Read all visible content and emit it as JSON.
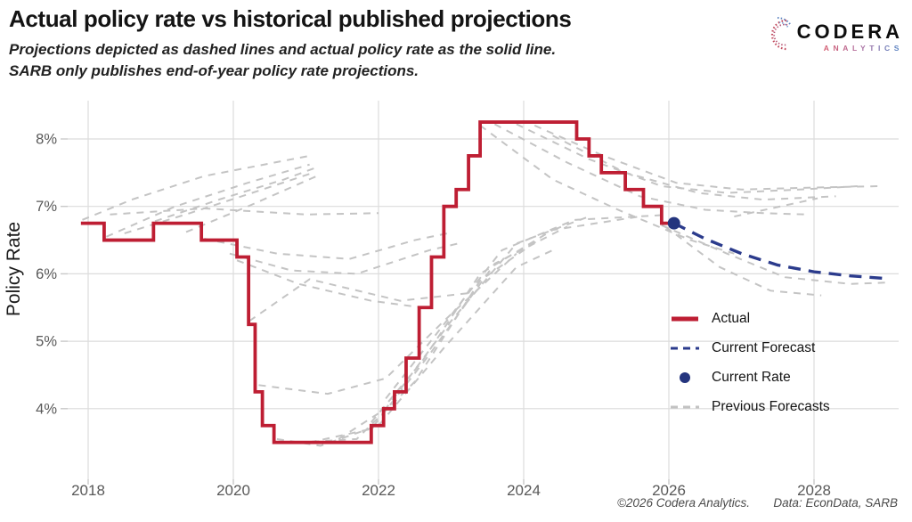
{
  "header": {
    "title": "Actual policy rate vs historical published projections",
    "subtitle_line1": "Projections depicted as dashed lines and actual policy rate as the solid line.",
    "subtitle_line2": "SARB only publishes end-of-year policy rate projections."
  },
  "logo": {
    "brand": "CODERA",
    "sub": "ANALYTICS"
  },
  "legend": {
    "items": [
      {
        "label": "Actual",
        "type": "solid",
        "color": "#BE1E33"
      },
      {
        "label": "Current Forecast",
        "type": "dashed",
        "color": "#2B3B8C"
      },
      {
        "label": "Current Rate",
        "type": "dot",
        "color": "#24357E"
      },
      {
        "label": "Previous Forecasts",
        "type": "dashed",
        "color": "#C2C2C2"
      }
    ]
  },
  "footer": {
    "copyright": "©2026 Codera Analytics.",
    "source": "Data: EconData, SARB"
  },
  "chart_data": {
    "type": "line",
    "title": "Actual policy rate vs historical published projections",
    "xlabel": "",
    "ylabel": "Policy Rate",
    "xlim": [
      2017.7,
      2029.2
    ],
    "ylim": [
      2.95,
      8.6
    ],
    "grid": true,
    "legend_position": "right-middle",
    "x_ticks": [
      2018,
      2020,
      2022,
      2024,
      2026,
      2028
    ],
    "x_tick_labels": [
      "2018",
      "2020",
      "2022",
      "2024",
      "2026",
      "2028"
    ],
    "y_ticks": [
      4,
      5,
      6,
      7,
      8
    ],
    "y_tick_labels": [
      "4%",
      "5%",
      "6%",
      "7%",
      "8%"
    ],
    "colors": {
      "actual": "#BE1E33",
      "current_forecast": "#2B3B8C",
      "current_rate": "#24357E",
      "previous_forecasts": "#C4C4C4",
      "gridline": "#DCDCDC",
      "tick_text": "#595959"
    },
    "series": {
      "actual": {
        "name": "Actual",
        "style": "step",
        "points": [
          [
            2017.9,
            6.75
          ],
          [
            2018.22,
            6.5
          ],
          [
            2018.9,
            6.75
          ],
          [
            2019.56,
            6.5
          ],
          [
            2020.05,
            6.25
          ],
          [
            2020.21,
            5.25
          ],
          [
            2020.3,
            4.25
          ],
          [
            2020.4,
            3.75
          ],
          [
            2020.56,
            3.5
          ],
          [
            2021.9,
            3.75
          ],
          [
            2022.07,
            4.0
          ],
          [
            2022.22,
            4.25
          ],
          [
            2022.38,
            4.75
          ],
          [
            2022.56,
            5.5
          ],
          [
            2022.73,
            6.25
          ],
          [
            2022.9,
            7.0
          ],
          [
            2023.07,
            7.25
          ],
          [
            2023.24,
            7.75
          ],
          [
            2023.4,
            8.25
          ],
          [
            2024.73,
            8.0
          ],
          [
            2024.9,
            7.75
          ],
          [
            2025.07,
            7.5
          ],
          [
            2025.4,
            7.25
          ],
          [
            2025.65,
            7.0
          ],
          [
            2025.9,
            6.75
          ]
        ],
        "end_year": 2026.07
      },
      "current_forecast": {
        "name": "Current Forecast",
        "style": "dashed",
        "points": [
          [
            2026.07,
            6.75
          ],
          [
            2026.5,
            6.52
          ],
          [
            2027.0,
            6.3
          ],
          [
            2027.5,
            6.13
          ],
          [
            2028.0,
            6.03
          ],
          [
            2028.5,
            5.97
          ],
          [
            2029.0,
            5.93
          ]
        ]
      },
      "current_rate": {
        "name": "Current Rate",
        "x": 2026.07,
        "y": 6.75
      },
      "previous_forecasts": [
        [
          [
            2017.92,
            6.8
          ],
          [
            2018.6,
            7.1
          ],
          [
            2019.6,
            7.45
          ],
          [
            2021.05,
            7.75
          ]
        ],
        [
          [
            2018.25,
            6.55
          ],
          [
            2019.2,
            7.0
          ],
          [
            2020.2,
            7.35
          ],
          [
            2021.05,
            7.62
          ]
        ],
        [
          [
            2018.5,
            6.6
          ],
          [
            2019.4,
            6.9
          ],
          [
            2020.4,
            7.25
          ],
          [
            2021.1,
            7.5
          ]
        ],
        [
          [
            2018.92,
            6.78
          ],
          [
            2019.8,
            7.1
          ],
          [
            2020.7,
            7.4
          ],
          [
            2021.15,
            7.58
          ]
        ],
        [
          [
            2019.35,
            6.62
          ],
          [
            2020.2,
            7.0
          ],
          [
            2021.15,
            7.45
          ]
        ],
        [
          [
            2018.3,
            6.88
          ],
          [
            2019.6,
            6.97
          ],
          [
            2021.0,
            6.88
          ],
          [
            2022.0,
            6.9
          ]
        ],
        [
          [
            2019.6,
            6.52
          ],
          [
            2020.6,
            6.3
          ],
          [
            2021.6,
            6.22
          ],
          [
            2022.5,
            6.5
          ],
          [
            2022.95,
            6.6
          ]
        ],
        [
          [
            2019.95,
            6.3
          ],
          [
            2020.8,
            6.05
          ],
          [
            2021.7,
            6.0
          ],
          [
            2022.7,
            6.35
          ],
          [
            2023.1,
            6.45
          ]
        ],
        [
          [
            2020.05,
            6.2
          ],
          [
            2020.9,
            5.85
          ],
          [
            2021.9,
            5.6
          ],
          [
            2022.6,
            5.5
          ]
        ],
        [
          [
            2020.22,
            5.3
          ],
          [
            2021.05,
            5.92
          ],
          [
            2022.3,
            5.6
          ],
          [
            2023.3,
            5.72
          ]
        ],
        [
          [
            2020.35,
            4.35
          ],
          [
            2021.3,
            4.22
          ],
          [
            2022.1,
            4.45
          ],
          [
            2022.9,
            5.3
          ],
          [
            2023.9,
            6.3
          ]
        ],
        [
          [
            2020.6,
            3.55
          ],
          [
            2021.2,
            3.45
          ],
          [
            2022.0,
            3.75
          ],
          [
            2022.9,
            4.9
          ],
          [
            2023.9,
            6.1
          ],
          [
            2024.4,
            6.35
          ]
        ],
        [
          [
            2020.9,
            3.5
          ],
          [
            2021.7,
            3.55
          ],
          [
            2022.5,
            4.4
          ],
          [
            2023.4,
            5.9
          ],
          [
            2024.2,
            6.5
          ]
        ],
        [
          [
            2021.05,
            3.5
          ],
          [
            2021.9,
            3.7
          ],
          [
            2022.7,
            4.8
          ],
          [
            2023.6,
            6.15
          ],
          [
            2024.6,
            6.7
          ]
        ],
        [
          [
            2021.45,
            3.55
          ],
          [
            2022.1,
            4.0
          ],
          [
            2023.0,
            5.3
          ],
          [
            2023.9,
            6.45
          ],
          [
            2024.9,
            6.85
          ]
        ],
        [
          [
            2021.9,
            3.8
          ],
          [
            2022.6,
            4.7
          ],
          [
            2023.4,
            6.0
          ],
          [
            2024.4,
            6.65
          ],
          [
            2025.6,
            6.85
          ]
        ],
        [
          [
            2022.1,
            4.15
          ],
          [
            2022.9,
            5.25
          ],
          [
            2023.7,
            6.35
          ],
          [
            2024.7,
            6.8
          ],
          [
            2025.9,
            6.87
          ]
        ],
        [
          [
            2023.4,
            8.2
          ],
          [
            2024.4,
            7.4
          ],
          [
            2025.3,
            6.95
          ],
          [
            2026.3,
            6.5
          ],
          [
            2026.9,
            6.3
          ]
        ],
        [
          [
            2023.6,
            8.22
          ],
          [
            2024.6,
            7.65
          ],
          [
            2025.6,
            7.15
          ],
          [
            2026.5,
            6.95
          ],
          [
            2027.3,
            6.9
          ],
          [
            2027.9,
            6.88
          ]
        ],
        [
          [
            2023.9,
            8.22
          ],
          [
            2024.9,
            7.7
          ],
          [
            2025.9,
            7.3
          ],
          [
            2026.8,
            7.2
          ],
          [
            2027.8,
            7.25
          ],
          [
            2028.6,
            7.3
          ]
        ],
        [
          [
            2024.15,
            8.2
          ],
          [
            2025.1,
            7.75
          ],
          [
            2026.1,
            7.35
          ],
          [
            2027.0,
            7.25
          ],
          [
            2028.0,
            7.28
          ],
          [
            2028.9,
            7.3
          ]
        ],
        [
          [
            2024.4,
            8.05
          ],
          [
            2025.4,
            7.5
          ],
          [
            2026.4,
            7.2
          ],
          [
            2027.3,
            7.1
          ],
          [
            2028.3,
            7.15
          ]
        ],
        [
          [
            2026.9,
            6.85
          ],
          [
            2028.05,
            7.12
          ]
        ],
        [
          [
            2025.9,
            6.72
          ],
          [
            2026.8,
            6.3
          ],
          [
            2027.6,
            5.95
          ],
          [
            2028.5,
            5.85
          ],
          [
            2029.0,
            5.87
          ]
        ],
        [
          [
            2025.95,
            6.7
          ],
          [
            2026.7,
            6.1
          ],
          [
            2027.4,
            5.75
          ],
          [
            2028.1,
            5.68
          ]
        ]
      ]
    }
  }
}
